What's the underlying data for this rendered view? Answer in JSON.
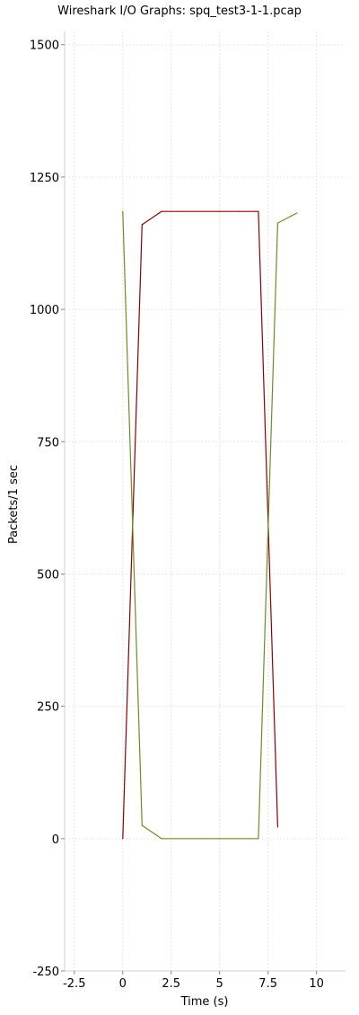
{
  "chart_data": {
    "type": "line",
    "title": "Wireshark I/O Graphs: spq_test3-1-1.pcap",
    "xlabel": "Time (s)",
    "ylabel": "Packets/1 sec",
    "xlim": [
      -3,
      11.5
    ],
    "ylim": [
      -250,
      1525
    ],
    "xticks": [
      -2.5,
      0,
      2.5,
      5,
      7.5,
      10
    ],
    "xtick_labels": [
      "-2.5",
      "0",
      "2.5",
      "5",
      "7.5",
      "10"
    ],
    "yticks": [
      -250,
      0,
      250,
      500,
      750,
      1000,
      1250,
      1500
    ],
    "ytick_labels": [
      "-250",
      "0",
      "250",
      "500",
      "750",
      "1000",
      "1250",
      "1500"
    ],
    "grid": true,
    "series": [
      {
        "color": "#8b0000",
        "x": [
          0,
          1,
          2,
          3,
          4,
          5,
          6,
          7,
          8
        ],
        "y": [
          0,
          1160,
          1185,
          1185,
          1185,
          1185,
          1185,
          1185,
          22
        ]
      },
      {
        "color": "#6b8e23",
        "x": [
          0,
          1,
          2,
          3,
          4,
          5,
          6,
          7,
          8,
          9
        ],
        "y": [
          1185,
          25,
          0,
          0,
          0,
          0,
          0,
          0,
          1163,
          1182
        ]
      }
    ]
  }
}
